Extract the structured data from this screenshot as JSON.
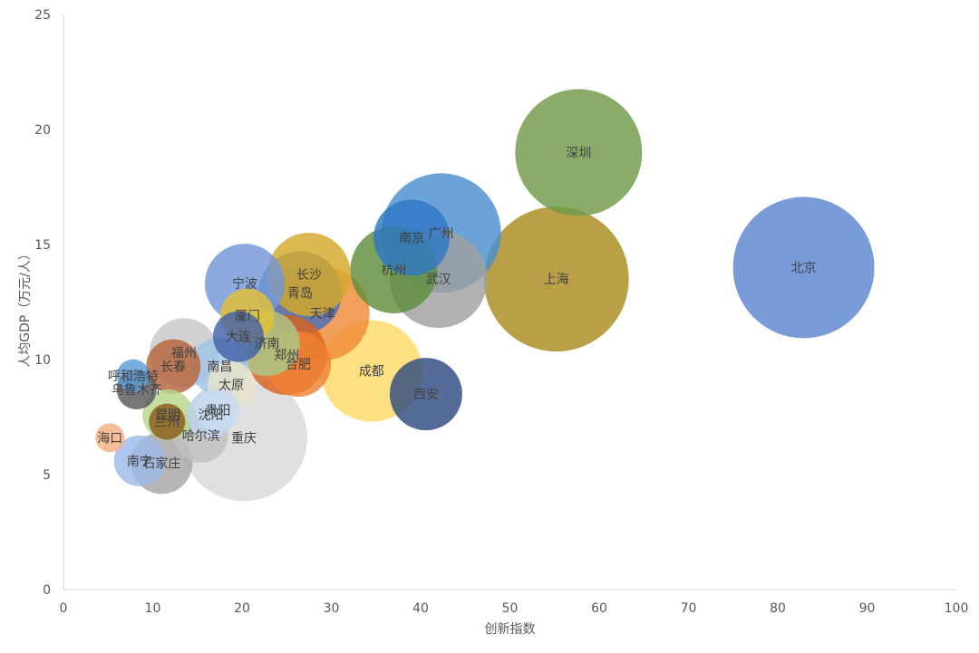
{
  "chart_data": {
    "type": "bubble",
    "xlabel": "创新指数",
    "ylabel": "人均GDP（万元/人）",
    "xlim": [
      0,
      100
    ],
    "ylim": [
      0,
      25
    ],
    "x_ticks": [
      "0",
      "10",
      "20",
      "30",
      "40",
      "50",
      "60",
      "70",
      "80",
      "90",
      "100"
    ],
    "y_ticks": [
      "0",
      "5",
      "10",
      "15",
      "20",
      "25"
    ],
    "grid": false,
    "legend": "none",
    "points": [
      {
        "label": "重庆",
        "x": 20.2,
        "y": 6.6,
        "r": 70,
        "color": "#d9d9d9"
      },
      {
        "label": "北京",
        "x": 82.9,
        "y": 14.0,
        "r": 78,
        "color": "#5b86d0"
      },
      {
        "label": "上海",
        "x": 55.2,
        "y": 13.5,
        "r": 80,
        "color": "#a98b1f"
      },
      {
        "label": "深圳",
        "x": 57.7,
        "y": 19.0,
        "r": 70,
        "color": "#6f9a4a"
      },
      {
        "label": "广州",
        "x": 42.3,
        "y": 15.5,
        "r": 66,
        "color": "#4a8fd0"
      },
      {
        "label": "南京",
        "x": 39.0,
        "y": 15.3,
        "r": 42,
        "color": "#2e78c6"
      },
      {
        "label": "武汉",
        "x": 42.0,
        "y": 13.5,
        "r": 54,
        "color": "#a0a0a0"
      },
      {
        "label": "杭州",
        "x": 37.0,
        "y": 13.9,
        "r": 48,
        "color": "#5f8f3a"
      },
      {
        "label": "成都",
        "x": 34.5,
        "y": 9.5,
        "r": 56,
        "color": "#ffd966"
      },
      {
        "label": "西安",
        "x": 40.6,
        "y": 8.5,
        "r": 40,
        "color": "#2e4a80"
      },
      {
        "label": "天津",
        "x": 29.0,
        "y": 12.0,
        "r": 52,
        "color": "#f08a38"
      },
      {
        "label": "青岛",
        "x": 26.5,
        "y": 12.9,
        "r": 46,
        "color": "#4b6fb8"
      },
      {
        "label": "长沙",
        "x": 27.5,
        "y": 13.7,
        "r": 46,
        "color": "#d4a82a"
      },
      {
        "label": "宁波",
        "x": 20.3,
        "y": 13.3,
        "r": 44,
        "color": "#7497d8"
      },
      {
        "label": "郑州",
        "x": 25.0,
        "y": 10.2,
        "r": 44,
        "color": "#d9611e"
      },
      {
        "label": "合肥",
        "x": 26.3,
        "y": 9.8,
        "r": 36,
        "color": "#ee8033"
      },
      {
        "label": "济南",
        "x": 22.8,
        "y": 10.7,
        "r": 36,
        "color": "#a8c888"
      },
      {
        "label": "厦门",
        "x": 20.6,
        "y": 11.9,
        "r": 30,
        "color": "#e3bf35"
      },
      {
        "label": "大连",
        "x": 19.6,
        "y": 11.0,
        "r": 28,
        "color": "#4462a8"
      },
      {
        "label": "福州",
        "x": 13.5,
        "y": 10.3,
        "r": 38,
        "color": "#c7c7c7"
      },
      {
        "label": "长春",
        "x": 12.3,
        "y": 9.7,
        "r": 30,
        "color": "#b5643a"
      },
      {
        "label": "南昌",
        "x": 17.5,
        "y": 9.7,
        "r": 32,
        "color": "#9fc5e8"
      },
      {
        "label": "太原",
        "x": 18.8,
        "y": 8.9,
        "r": 26,
        "color": "#e8e2c8"
      },
      {
        "label": "贵阳",
        "x": 17.3,
        "y": 7.8,
        "r": 24,
        "color": "#c9dcf2"
      },
      {
        "label": "沈阳",
        "x": 16.5,
        "y": 7.6,
        "r": 26,
        "color": "#bcd3ee"
      },
      {
        "label": "昆明",
        "x": 11.7,
        "y": 7.6,
        "r": 28,
        "color": "#b6d78a"
      },
      {
        "label": "兰州",
        "x": 11.6,
        "y": 7.3,
        "r": 20,
        "color": "#8b5a1a"
      },
      {
        "label": "哈尔滨",
        "x": 15.4,
        "y": 6.7,
        "r": 30,
        "color": "#bfbfbf"
      },
      {
        "label": "石家庄",
        "x": 11.0,
        "y": 5.5,
        "r": 34,
        "color": "#a6a6a6"
      },
      {
        "label": "南宁",
        "x": 8.5,
        "y": 5.6,
        "r": 28,
        "color": "#9cb8e8"
      },
      {
        "label": "海口",
        "x": 5.2,
        "y": 6.6,
        "r": 16,
        "color": "#f4b183"
      },
      {
        "label": "呼和浩特",
        "x": 7.8,
        "y": 9.3,
        "r": 18,
        "color": "#5b9bd5"
      },
      {
        "label": "乌鲁木齐",
        "x": 8.2,
        "y": 8.7,
        "r": 22,
        "color": "#595959"
      }
    ]
  }
}
